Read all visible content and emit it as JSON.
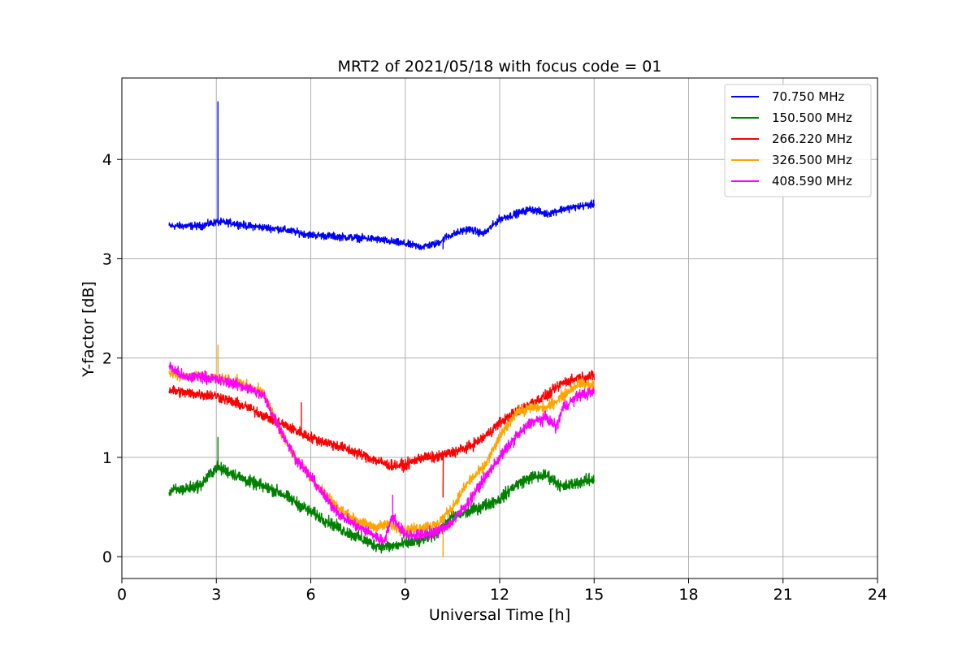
{
  "chart_data": {
    "type": "line",
    "title": "MRT2 of 2021/05/18 with focus code = 01",
    "xlabel": "Universal Time [h]",
    "ylabel": "Y-factor [dB]",
    "xlim": [
      0,
      24
    ],
    "ylim": [
      -0.22,
      4.82
    ],
    "xticks": [
      0,
      3,
      6,
      9,
      12,
      15,
      18,
      21,
      24
    ],
    "yticks": [
      0,
      1,
      2,
      3,
      4
    ],
    "grid": true,
    "legend_position": "top-right",
    "series": [
      {
        "name": "70.750 MHz",
        "color": "#0000ff",
        "noise": 0.055,
        "points": [
          [
            1.5,
            3.33
          ],
          [
            2.5,
            3.33
          ],
          [
            3.0,
            3.37
          ],
          [
            3.5,
            3.36
          ],
          [
            4.0,
            3.33
          ],
          [
            5.0,
            3.3
          ],
          [
            6.0,
            3.24
          ],
          [
            7.0,
            3.22
          ],
          [
            8.0,
            3.2
          ],
          [
            9.0,
            3.15
          ],
          [
            9.5,
            3.12
          ],
          [
            10.0,
            3.15
          ],
          [
            10.3,
            3.22
          ],
          [
            11.0,
            3.3
          ],
          [
            11.5,
            3.25
          ],
          [
            12.0,
            3.4
          ],
          [
            13.0,
            3.5
          ],
          [
            13.5,
            3.45
          ],
          [
            14.0,
            3.5
          ],
          [
            15.0,
            3.55
          ]
        ],
        "spikes": [
          [
            3.05,
            4.58
          ],
          [
            10.2,
            3.1
          ]
        ]
      },
      {
        "name": "150.500 MHz",
        "color": "#008000",
        "noise": 0.09,
        "points": [
          [
            1.5,
            0.66
          ],
          [
            2.0,
            0.68
          ],
          [
            2.5,
            0.72
          ],
          [
            3.0,
            0.9
          ],
          [
            3.5,
            0.84
          ],
          [
            4.0,
            0.76
          ],
          [
            5.0,
            0.65
          ],
          [
            6.0,
            0.45
          ],
          [
            7.0,
            0.27
          ],
          [
            8.0,
            0.12
          ],
          [
            8.5,
            0.1
          ],
          [
            9.0,
            0.13
          ],
          [
            9.5,
            0.16
          ],
          [
            10.0,
            0.24
          ],
          [
            10.5,
            0.4
          ],
          [
            11.0,
            0.45
          ],
          [
            12.0,
            0.58
          ],
          [
            12.5,
            0.72
          ],
          [
            13.0,
            0.8
          ],
          [
            13.5,
            0.82
          ],
          [
            14.0,
            0.7
          ],
          [
            14.5,
            0.75
          ],
          [
            15.0,
            0.78
          ]
        ],
        "spikes": [
          [
            3.05,
            1.2
          ]
        ]
      },
      {
        "name": "266.220 MHz",
        "color": "#ff0000",
        "noise": 0.08,
        "points": [
          [
            1.5,
            1.68
          ],
          [
            2.0,
            1.65
          ],
          [
            3.0,
            1.62
          ],
          [
            4.0,
            1.5
          ],
          [
            5.0,
            1.35
          ],
          [
            6.0,
            1.2
          ],
          [
            7.0,
            1.1
          ],
          [
            8.0,
            0.98
          ],
          [
            8.5,
            0.92
          ],
          [
            9.0,
            0.92
          ],
          [
            9.5,
            1.0
          ],
          [
            10.0,
            1.0
          ],
          [
            10.5,
            1.05
          ],
          [
            11.0,
            1.1
          ],
          [
            11.5,
            1.2
          ],
          [
            12.0,
            1.35
          ],
          [
            13.0,
            1.55
          ],
          [
            13.5,
            1.62
          ],
          [
            14.0,
            1.75
          ],
          [
            14.5,
            1.8
          ],
          [
            15.0,
            1.82
          ]
        ],
        "spikes": [
          [
            5.7,
            1.55
          ],
          [
            10.2,
            0.6
          ]
        ]
      },
      {
        "name": "326.500 MHz",
        "color": "#ffa500",
        "noise": 0.08,
        "points": [
          [
            1.5,
            1.85
          ],
          [
            2.0,
            1.82
          ],
          [
            3.0,
            1.8
          ],
          [
            3.5,
            1.78
          ],
          [
            4.0,
            1.72
          ],
          [
            4.5,
            1.65
          ],
          [
            5.0,
            1.3
          ],
          [
            5.5,
            1.0
          ],
          [
            6.0,
            0.8
          ],
          [
            6.5,
            0.62
          ],
          [
            7.0,
            0.45
          ],
          [
            7.5,
            0.35
          ],
          [
            8.0,
            0.3
          ],
          [
            8.5,
            0.32
          ],
          [
            9.0,
            0.26
          ],
          [
            9.5,
            0.3
          ],
          [
            10.0,
            0.32
          ],
          [
            10.5,
            0.5
          ],
          [
            11.0,
            0.75
          ],
          [
            11.5,
            0.9
          ],
          [
            12.0,
            1.2
          ],
          [
            12.5,
            1.45
          ],
          [
            13.0,
            1.5
          ],
          [
            13.5,
            1.5
          ],
          [
            14.0,
            1.62
          ],
          [
            14.5,
            1.75
          ],
          [
            15.0,
            1.72
          ]
        ],
        "spikes": [
          [
            3.05,
            2.13
          ],
          [
            10.2,
            0.0
          ]
        ]
      },
      {
        "name": "408.590 MHz",
        "color": "#ff00ff",
        "noise": 0.085,
        "points": [
          [
            1.5,
            1.92
          ],
          [
            2.0,
            1.8
          ],
          [
            2.5,
            1.82
          ],
          [
            3.0,
            1.78
          ],
          [
            3.5,
            1.75
          ],
          [
            4.0,
            1.7
          ],
          [
            4.5,
            1.62
          ],
          [
            5.0,
            1.3
          ],
          [
            5.5,
            1.0
          ],
          [
            6.0,
            0.8
          ],
          [
            6.5,
            0.58
          ],
          [
            7.0,
            0.4
          ],
          [
            7.5,
            0.3
          ],
          [
            8.0,
            0.22
          ],
          [
            8.3,
            0.15
          ],
          [
            8.6,
            0.4
          ],
          [
            9.0,
            0.22
          ],
          [
            9.5,
            0.22
          ],
          [
            10.0,
            0.25
          ],
          [
            10.5,
            0.35
          ],
          [
            11.0,
            0.55
          ],
          [
            11.5,
            0.78
          ],
          [
            12.0,
            1.0
          ],
          [
            12.5,
            1.2
          ],
          [
            13.0,
            1.35
          ],
          [
            13.5,
            1.4
          ],
          [
            13.8,
            1.3
          ],
          [
            14.0,
            1.5
          ],
          [
            14.5,
            1.62
          ],
          [
            15.0,
            1.66
          ]
        ],
        "spikes": [
          [
            8.6,
            0.62
          ]
        ]
      }
    ]
  }
}
